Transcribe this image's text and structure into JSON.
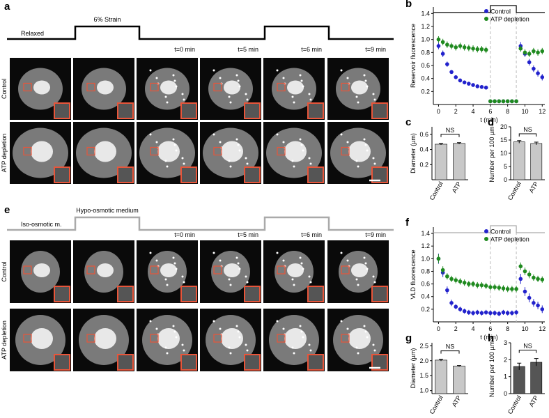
{
  "panel_labels": [
    "a",
    "b",
    "c",
    "d",
    "e",
    "f",
    "g",
    "h"
  ],
  "top": {
    "protocol": [
      "Relaxed",
      "6% Strain"
    ],
    "time_labels": [
      "t=0 min",
      "t=5 min",
      "t=6 min",
      "t=9 min"
    ],
    "row_labels": [
      "Control",
      "ATP depletion"
    ]
  },
  "bottom": {
    "protocol": [
      "Iso-osmotic m.",
      "Hypo-osmotic medium"
    ],
    "time_labels": [
      "t=0 min",
      "t=5 min",
      "t=6 min",
      "t=9 min"
    ],
    "row_labels": [
      "Control",
      "ATP depletion"
    ]
  },
  "chart_data": [
    {
      "type": "scatter",
      "ylabel": "Reservoir fluorescence",
      "xlabel": "t (min)",
      "xlim": [
        -0.6,
        12.3
      ],
      "xticks": [
        0,
        2,
        4,
        6,
        8,
        10,
        12
      ],
      "ylim": [
        0,
        1.5
      ],
      "yticks": [
        0.2,
        0.4,
        0.6,
        0.8,
        {
          "value": 1,
          "label": "1.0"
        },
        1.2,
        1.4
      ],
      "legend": "upper right",
      "dashed_lines": [
        6,
        9
      ],
      "step_color": "#000000",
      "x": [
        0,
        0.5,
        1,
        1.5,
        2,
        2.5,
        3,
        3.5,
        4,
        4.5,
        5,
        5.5,
        6,
        6.5,
        7,
        7.5,
        8,
        8.5,
        9,
        9.5,
        10,
        10.5,
        11,
        11.5,
        12
      ],
      "series": [
        {
          "name": "Control",
          "color": "#2222cc",
          "values": [
            0.9,
            0.78,
            0.62,
            0.5,
            0.42,
            0.37,
            0.34,
            0.32,
            0.3,
            0.28,
            0.27,
            0.26,
            0.05,
            0.05,
            0.05,
            0.05,
            0.05,
            0.05,
            0.05,
            0.9,
            0.78,
            0.65,
            0.55,
            0.48,
            0.42
          ],
          "errors": [
            0.05,
            0.05,
            0.04,
            0.03,
            0.03,
            0.03,
            0.03,
            0.03,
            0.03,
            0.03,
            0.03,
            0.03,
            0.03,
            0.03,
            0.03,
            0.03,
            0.03,
            0.03,
            0.03,
            0.06,
            0.05,
            0.05,
            0.05,
            0.05,
            0.05
          ]
        },
        {
          "name": "ATP depletion",
          "color": "#1f8a1f",
          "values": [
            1.0,
            0.96,
            0.92,
            0.9,
            0.88,
            0.9,
            0.88,
            0.87,
            0.86,
            0.85,
            0.85,
            0.84,
            0.05,
            0.05,
            0.05,
            0.05,
            0.05,
            0.05,
            0.05,
            0.86,
            0.8,
            0.78,
            0.82,
            0.8,
            0.82
          ],
          "errors": [
            0.05,
            0.05,
            0.05,
            0.05,
            0.05,
            0.05,
            0.05,
            0.05,
            0.05,
            0.05,
            0.05,
            0.05,
            0.03,
            0.03,
            0.03,
            0.03,
            0.03,
            0.03,
            0.03,
            0.05,
            0.05,
            0.05,
            0.05,
            0.05,
            0.05
          ]
        }
      ]
    },
    {
      "type": "bar",
      "ylabel": "Diameter (µm)",
      "categories": [
        "Control",
        "ATP"
      ],
      "values": [
        0.47,
        0.48
      ],
      "errors": [
        0.01,
        0.01
      ],
      "color": "#c8c8c8",
      "annotation": "NS",
      "ylim": [
        0,
        0.7
      ],
      "yticks": [
        0.2,
        0.4,
        0.6
      ]
    },
    {
      "type": "bar",
      "ylabel": "Number per 100 µm²",
      "categories": [
        "Control",
        "ATP"
      ],
      "values": [
        14.3,
        13.7
      ],
      "errors": [
        0.5,
        0.5
      ],
      "color": "#c8c8c8",
      "annotation": "NS",
      "ylim": [
        0,
        20
      ],
      "yticks": [
        0,
        5,
        10,
        15,
        20
      ]
    },
    {
      "type": "scatter",
      "ylabel": "VLD fluorescence",
      "xlabel": "t (min)",
      "xlim": [
        -0.6,
        12.3
      ],
      "xticks": [
        0,
        2,
        4,
        6,
        8,
        10,
        12
      ],
      "ylim": [
        0,
        1.5
      ],
      "yticks": [
        0.2,
        0.4,
        0.6,
        0.8,
        {
          "value": 1,
          "label": "1.0"
        },
        1.2,
        1.4
      ],
      "legend": "upper right",
      "dashed_lines": [
        6,
        9
      ],
      "step_color": "#aaaaaa",
      "x": [
        0,
        0.5,
        1,
        1.5,
        2,
        2.5,
        3,
        3.5,
        4,
        4.5,
        5,
        5.5,
        6,
        6.5,
        7,
        7.5,
        8,
        8.5,
        9,
        9.5,
        10,
        10.5,
        11,
        11.5,
        12
      ],
      "series": [
        {
          "name": "Control",
          "color": "#2222cc",
          "values": [
            1.0,
            0.78,
            0.5,
            0.3,
            0.24,
            0.2,
            0.17,
            0.15,
            0.14,
            0.15,
            0.14,
            0.15,
            0.14,
            0.14,
            0.13,
            0.15,
            0.14,
            0.14,
            0.15,
            0.68,
            0.48,
            0.38,
            0.3,
            0.26,
            0.2
          ],
          "errors": [
            0.08,
            0.07,
            0.06,
            0.05,
            0.04,
            0.04,
            0.04,
            0.04,
            0.04,
            0.04,
            0.04,
            0.04,
            0.04,
            0.04,
            0.04,
            0.04,
            0.04,
            0.04,
            0.04,
            0.08,
            0.07,
            0.07,
            0.06,
            0.06,
            0.06
          ]
        },
        {
          "name": "ATP depletion",
          "color": "#1f8a1f",
          "values": [
            1.0,
            0.82,
            0.72,
            0.68,
            0.66,
            0.64,
            0.62,
            0.6,
            0.6,
            0.58,
            0.58,
            0.57,
            0.55,
            0.55,
            0.54,
            0.53,
            0.52,
            0.52,
            0.52,
            0.88,
            0.8,
            0.75,
            0.7,
            0.68,
            0.67
          ],
          "errors": [
            0.07,
            0.06,
            0.05,
            0.05,
            0.05,
            0.05,
            0.05,
            0.05,
            0.05,
            0.05,
            0.05,
            0.05,
            0.05,
            0.05,
            0.05,
            0.05,
            0.05,
            0.05,
            0.05,
            0.06,
            0.06,
            0.06,
            0.05,
            0.05,
            0.05
          ]
        }
      ]
    },
    {
      "type": "bar",
      "ylabel": "Diameter (µm)",
      "categories": [
        "Control",
        "ATP"
      ],
      "values": [
        2.02,
        1.82
      ],
      "errors": [
        0.03,
        0.02
      ],
      "color": "#c8c8c8",
      "annotation": "NS",
      "ylim": [
        0.9,
        2.6
      ],
      "yticks": [
        {
          "value": 1,
          "label": "1.0"
        },
        1.5,
        {
          "value": 2,
          "label": "2.0"
        },
        2.5
      ]
    },
    {
      "type": "bar",
      "ylabel": "Number per 100 µm²",
      "categories": [
        "Control",
        "ATP"
      ],
      "values": [
        1.6,
        1.85
      ],
      "errors": [
        0.2,
        0.22
      ],
      "color": "#555555",
      "annotation": "NS",
      "ylim": [
        0,
        3
      ],
      "yticks": [
        0,
        1,
        2,
        3
      ]
    }
  ]
}
